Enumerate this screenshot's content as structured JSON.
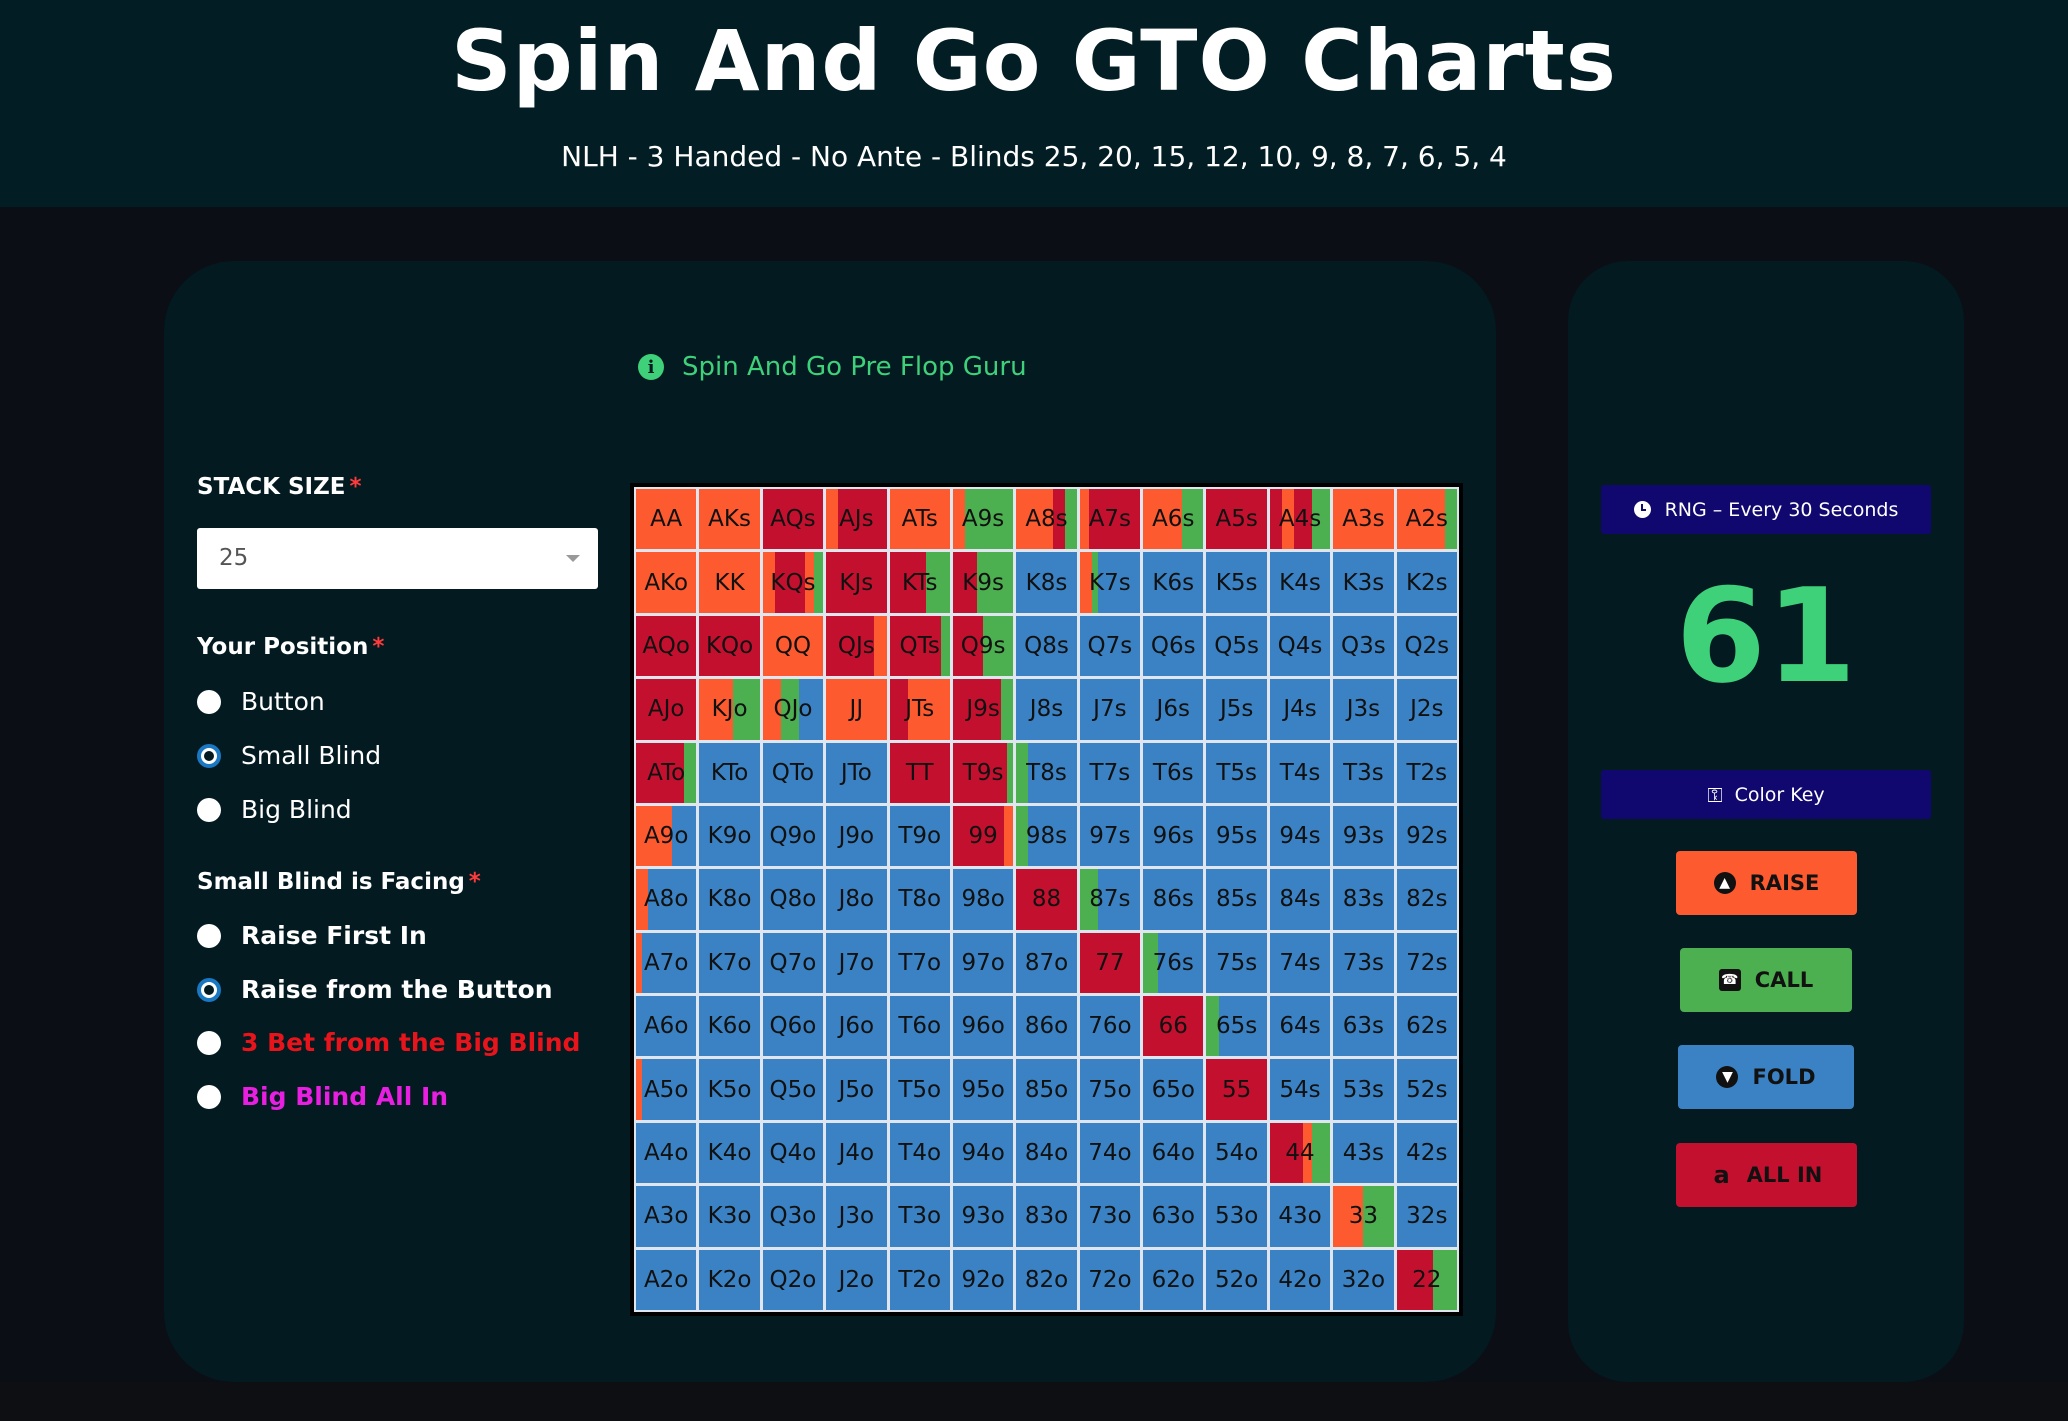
{
  "header": {
    "title": "Spin And Go GTO Charts",
    "subtitle": "NLH - 3 Handed - No Ante - Blinds 25, 20, 15, 12, 10, 9, 8, 7, 6, 5, 4"
  },
  "info": {
    "text": "Spin And Go Pre Flop Guru",
    "icon": "info-icon"
  },
  "stack": {
    "label": "STACK SIZE",
    "required": "*",
    "value": "25"
  },
  "position": {
    "label": "Your Position",
    "required": "*",
    "options": [
      {
        "label": "Button",
        "checked": false
      },
      {
        "label": "Small Blind",
        "checked": true
      },
      {
        "label": "Big Blind",
        "checked": false
      }
    ]
  },
  "facing": {
    "label": "Small Blind is Facing",
    "required": "*",
    "options": [
      {
        "label": "Raise First In",
        "checked": false,
        "color": "#ffffff"
      },
      {
        "label": "Raise from the Button",
        "checked": true,
        "color": "#ffffff"
      },
      {
        "label": "3 Bet from the Big Blind",
        "checked": false,
        "color": "#e8141c"
      },
      {
        "label": "Big Blind All In",
        "checked": false,
        "color": "#e81ee0"
      }
    ]
  },
  "colors": {
    "raise": "#fd5a30",
    "call": "#4caf50",
    "fold": "#3b82c4",
    "allin": "#c4102f"
  },
  "grid": {
    "rows": [
      [
        "AA",
        "AKs",
        "AQs",
        "AJs",
        "ATs",
        "A9s",
        "A8s",
        "A7s",
        "A6s",
        "A5s",
        "A4s",
        "A3s",
        "A2s"
      ],
      [
        "AKo",
        "KK",
        "KQs",
        "KJs",
        "KTs",
        "K9s",
        "K8s",
        "K7s",
        "K6s",
        "K5s",
        "K4s",
        "K3s",
        "K2s"
      ],
      [
        "AQo",
        "KQo",
        "QQ",
        "QJs",
        "QTs",
        "Q9s",
        "Q8s",
        "Q7s",
        "Q6s",
        "Q5s",
        "Q4s",
        "Q3s",
        "Q2s"
      ],
      [
        "AJo",
        "KJo",
        "QJo",
        "JJ",
        "JTs",
        "J9s",
        "J8s",
        "J7s",
        "J6s",
        "J5s",
        "J4s",
        "J3s",
        "J2s"
      ],
      [
        "ATo",
        "KTo",
        "QTo",
        "JTo",
        "TT",
        "T9s",
        "T8s",
        "T7s",
        "T6s",
        "T5s",
        "T4s",
        "T3s",
        "T2s"
      ],
      [
        "A9o",
        "K9o",
        "Q9o",
        "J9o",
        "T9o",
        "99",
        "98s",
        "97s",
        "96s",
        "95s",
        "94s",
        "93s",
        "92s"
      ],
      [
        "A8o",
        "K8o",
        "Q8o",
        "J8o",
        "T8o",
        "98o",
        "88",
        "87s",
        "86s",
        "85s",
        "84s",
        "83s",
        "82s"
      ],
      [
        "A7o",
        "K7o",
        "Q7o",
        "J7o",
        "T7o",
        "97o",
        "87o",
        "77",
        "76s",
        "75s",
        "74s",
        "73s",
        "72s"
      ],
      [
        "A6o",
        "K6o",
        "Q6o",
        "J6o",
        "T6o",
        "96o",
        "86o",
        "76o",
        "66",
        "65s",
        "64s",
        "63s",
        "62s"
      ],
      [
        "A5o",
        "K5o",
        "Q5o",
        "J5o",
        "T5o",
        "95o",
        "85o",
        "75o",
        "65o",
        "55",
        "54s",
        "53s",
        "52s"
      ],
      [
        "A4o",
        "K4o",
        "Q4o",
        "J4o",
        "T4o",
        "94o",
        "84o",
        "74o",
        "64o",
        "54o",
        "44",
        "43s",
        "42s"
      ],
      [
        "A3o",
        "K3o",
        "Q3o",
        "J3o",
        "T3o",
        "93o",
        "83o",
        "73o",
        "63o",
        "53o",
        "43o",
        "33",
        "32s"
      ],
      [
        "A2o",
        "K2o",
        "Q2o",
        "J2o",
        "T2o",
        "92o",
        "82o",
        "72o",
        "62o",
        "52o",
        "42o",
        "32o",
        "22"
      ]
    ],
    "mix": {
      "AA": [
        [
          "raise",
          1
        ]
      ],
      "AKs": [
        [
          "raise",
          1
        ]
      ],
      "AQs": [
        [
          "allin",
          1
        ]
      ],
      "AJs": [
        [
          "raise",
          0.2
        ],
        [
          "allin",
          0.8
        ]
      ],
      "ATs": [
        [
          "raise",
          1
        ]
      ],
      "A9s": [
        [
          "raise",
          0.2
        ],
        [
          "call",
          0.8
        ]
      ],
      "A8s": [
        [
          "raise",
          0.6
        ],
        [
          "allin",
          0.2
        ],
        [
          "call",
          0.2
        ]
      ],
      "A7s": [
        [
          "raise",
          0.15
        ],
        [
          "allin",
          0.85
        ]
      ],
      "A6s": [
        [
          "raise",
          0.65
        ],
        [
          "call",
          0.35
        ]
      ],
      "A5s": [
        [
          "allin",
          1
        ]
      ],
      "A4s": [
        [
          "allin",
          0.2
        ],
        [
          "raise",
          0.2
        ],
        [
          "allin",
          0.3
        ],
        [
          "call",
          0.3
        ]
      ],
      "A3s": [
        [
          "raise",
          1
        ]
      ],
      "A2s": [
        [
          "raise",
          0.8
        ],
        [
          "call",
          0.2
        ]
      ],
      "AKo": [
        [
          "raise",
          1
        ]
      ],
      "KK": [
        [
          "raise",
          1
        ]
      ],
      "KQs": [
        [
          "raise",
          0.2
        ],
        [
          "allin",
          0.5
        ],
        [
          "raise",
          0.15
        ],
        [
          "call",
          0.15
        ]
      ],
      "KJs": [
        [
          "allin",
          1
        ]
      ],
      "KTs": [
        [
          "allin",
          0.6
        ],
        [
          "call",
          0.4
        ]
      ],
      "K9s": [
        [
          "allin",
          0.4
        ],
        [
          "call",
          0.6
        ]
      ],
      "K8s": [
        [
          "fold",
          1
        ]
      ],
      "K7s": [
        [
          "raise",
          0.2
        ],
        [
          "call",
          0.1
        ],
        [
          "fold",
          0.7
        ]
      ],
      "AQo": [
        [
          "allin",
          1
        ]
      ],
      "KQo": [
        [
          "allin",
          1
        ]
      ],
      "QQ": [
        [
          "raise",
          1
        ]
      ],
      "QJs": [
        [
          "allin",
          0.8
        ],
        [
          "raise",
          0.2
        ]
      ],
      "QTs": [
        [
          "allin",
          0.85
        ],
        [
          "call",
          0.15
        ]
      ],
      "Q9s": [
        [
          "allin",
          0.5
        ],
        [
          "call",
          0.5
        ]
      ],
      "AJo": [
        [
          "allin",
          1
        ]
      ],
      "KJo": [
        [
          "raise",
          0.55
        ],
        [
          "call",
          0.45
        ]
      ],
      "QJo": [
        [
          "raise",
          0.3
        ],
        [
          "call",
          0.3
        ],
        [
          "fold",
          0.4
        ]
      ],
      "JJ": [
        [
          "raise",
          1
        ]
      ],
      "JTs": [
        [
          "allin",
          0.3
        ],
        [
          "raise",
          0.7
        ]
      ],
      "J9s": [
        [
          "allin",
          0.8
        ],
        [
          "call",
          0.2
        ]
      ],
      "ATo": [
        [
          "allin",
          0.8
        ],
        [
          "call",
          0.2
        ]
      ],
      "TT": [
        [
          "allin",
          1
        ]
      ],
      "T9s": [
        [
          "allin",
          0.9
        ],
        [
          "call",
          0.1
        ]
      ],
      "T8s": [
        [
          "call",
          0.2
        ],
        [
          "fold",
          0.8
        ]
      ],
      "A9o": [
        [
          "raise",
          0.6
        ],
        [
          "fold",
          0.4
        ]
      ],
      "99": [
        [
          "allin",
          0.85
        ],
        [
          "raise",
          0.15
        ]
      ],
      "98s": [
        [
          "call",
          0.2
        ],
        [
          "fold",
          0.8
        ]
      ],
      "A8o": [
        [
          "raise",
          0.2
        ],
        [
          "fold",
          0.8
        ]
      ],
      "88": [
        [
          "allin",
          1
        ]
      ],
      "87s": [
        [
          "call",
          0.3
        ],
        [
          "fold",
          0.7
        ]
      ],
      "A7o": [
        [
          "raise",
          0.1
        ],
        [
          "fold",
          0.9
        ]
      ],
      "77": [
        [
          "allin",
          1
        ]
      ],
      "76s": [
        [
          "call",
          0.25
        ],
        [
          "fold",
          0.75
        ]
      ],
      "A5o": [
        [
          "raise",
          0.1
        ],
        [
          "fold",
          0.9
        ]
      ],
      "66": [
        [
          "allin",
          1
        ]
      ],
      "65s": [
        [
          "call",
          0.2
        ],
        [
          "fold",
          0.8
        ]
      ],
      "55": [
        [
          "allin",
          1
        ]
      ],
      "44": [
        [
          "allin",
          0.55
        ],
        [
          "raise",
          0.15
        ],
        [
          "call",
          0.3
        ]
      ],
      "33": [
        [
          "raise",
          0.5
        ],
        [
          "call",
          0.5
        ]
      ],
      "22": [
        [
          "allin",
          0.6
        ],
        [
          "call",
          0.4
        ]
      ]
    }
  },
  "rng": {
    "label": "RNG – Every 30 Seconds",
    "value": "61"
  },
  "color_key": {
    "label": "Color Key"
  },
  "buttons": {
    "raise": "RAISE",
    "call": "CALL",
    "fold": "FOLD",
    "allin": "ALL IN"
  }
}
